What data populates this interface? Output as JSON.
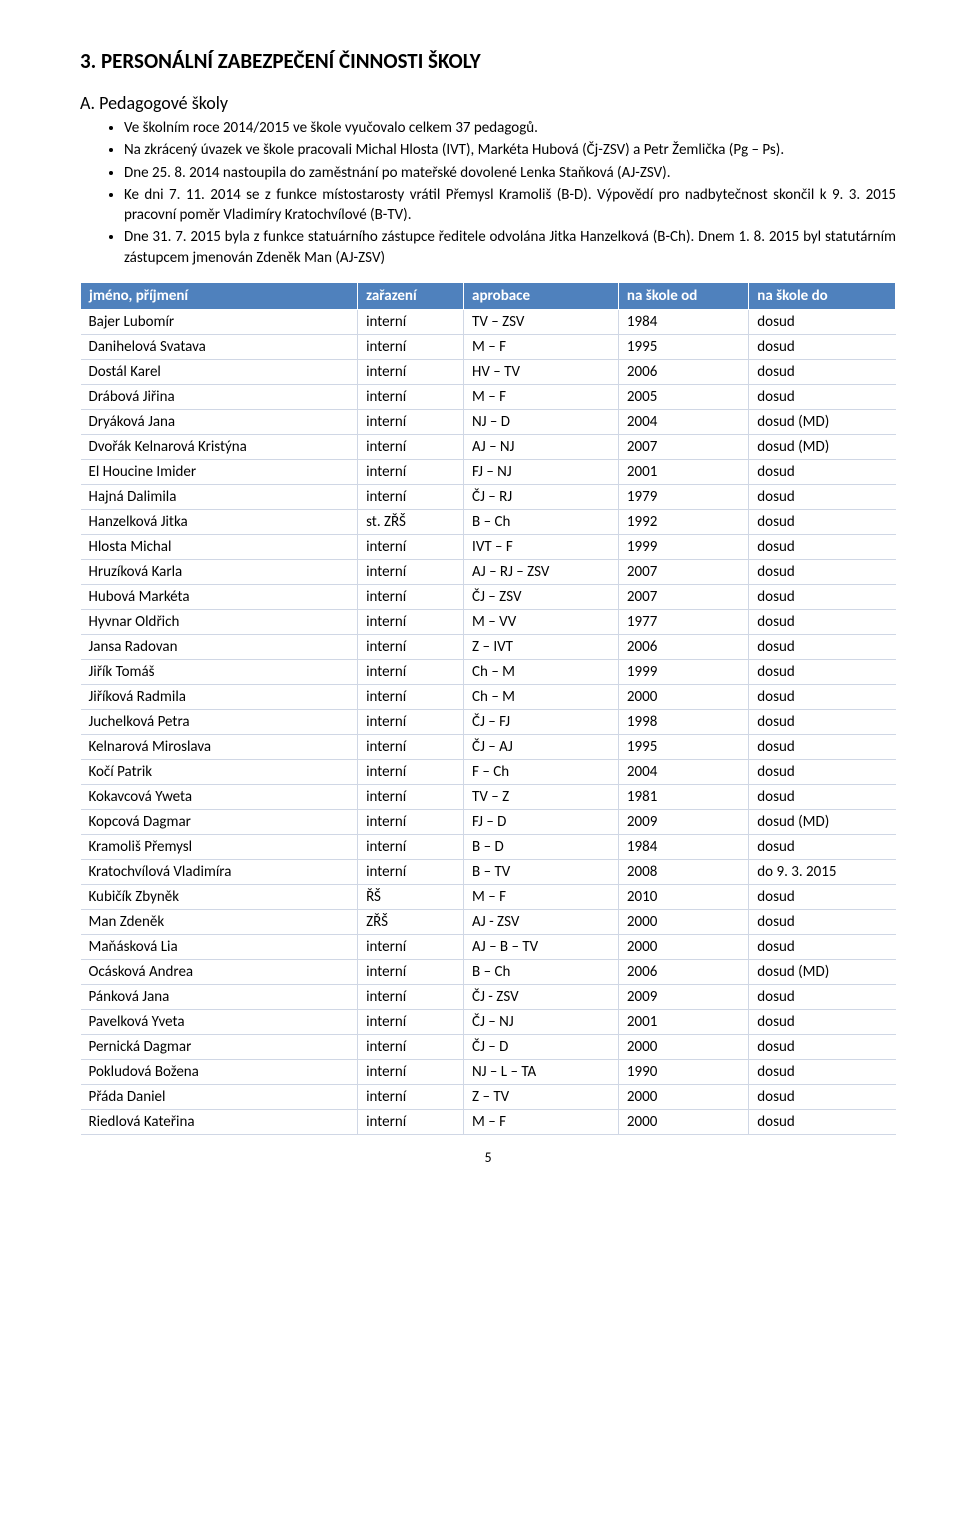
{
  "heading": "3.  PERSONÁLNÍ ZABEZPEČENÍ ČINNOSTI ŠKOLY",
  "subsection": "A. Pedagogové školy",
  "bullets": [
    "Ve školním roce 2014/2015 ve škole vyučovalo celkem 37 pedagogů.",
    "Na zkrácený úvazek ve škole pracovali Michal Hlosta (IVT), Markéta Hubová (Čj-ZSV) a Petr Žemlička (Pg – Ps).",
    "Dne 25. 8. 2014 nastoupila do zaměstnání po mateřské dovolené Lenka Staňková (AJ-ZSV).",
    "Ke dni 7. 11. 2014 se z funkce místostarosty vrátil Přemysl Kramoliš (B-D). Výpovědí pro nadbytečnost skončil k 9. 3. 2015 pracovní poměr Vladimíry Kratochvílové (B-TV).",
    "Dne 31. 7. 2015 byla z funkce statuárního zástupce ředitele odvolána Jitka Hanzelková (B-Ch). Dnem 1. 8. 2015 byl statutárním zástupcem jmenován Zdeněk Man (AJ-ZSV)"
  ],
  "table": {
    "headers": [
      "jméno, příjmení",
      "zařazení",
      "aprobace",
      "na škole od",
      "na škole do"
    ],
    "rows": [
      [
        "Bajer Lubomír",
        "interní",
        "TV – ZSV",
        "1984",
        "dosud"
      ],
      [
        "Danihelová Svatava",
        "interní",
        "M – F",
        "1995",
        "dosud"
      ],
      [
        "Dostál Karel",
        "interní",
        "HV – TV",
        "2006",
        "dosud"
      ],
      [
        "Drábová Jiřina",
        "interní",
        "M – F",
        "2005",
        "dosud"
      ],
      [
        "Dryáková Jana",
        "interní",
        "NJ – D",
        "2004",
        "dosud (MD)"
      ],
      [
        "Dvořák Kelnarová Kristýna",
        "interní",
        "AJ – NJ",
        "2007",
        "dosud (MD)"
      ],
      [
        "El Houcine Imider",
        "interní",
        "FJ – NJ",
        "2001",
        "dosud"
      ],
      [
        "Hajná Dalimila",
        "interní",
        "ČJ – RJ",
        "1979",
        "dosud"
      ],
      [
        "Hanzelková Jitka",
        "st. ZŘŠ",
        "B – Ch",
        "1992",
        "dosud"
      ],
      [
        "Hlosta Michal",
        "interní",
        "IVT – F",
        "1999",
        "dosud"
      ],
      [
        "Hruzíková Karla",
        "interní",
        "AJ – RJ – ZSV",
        "2007",
        "dosud"
      ],
      [
        "Hubová Markéta",
        "interní",
        "ČJ – ZSV",
        "2007",
        "dosud"
      ],
      [
        "Hyvnar Oldřich",
        "interní",
        "M – VV",
        "1977",
        "dosud"
      ],
      [
        "Jansa Radovan",
        "interní",
        "Z – IVT",
        "2006",
        "dosud"
      ],
      [
        "Jiřík Tomáš",
        "interní",
        "Ch – M",
        "1999",
        "dosud"
      ],
      [
        "Jiříková Radmila",
        "interní",
        "Ch – M",
        "2000",
        "dosud"
      ],
      [
        "Juchelková Petra",
        "interní",
        "ČJ – FJ",
        "1998",
        "dosud"
      ],
      [
        "Kelnarová Miroslava",
        "interní",
        "ČJ – AJ",
        "1995",
        "dosud"
      ],
      [
        "Kočí Patrik",
        "interní",
        "F – Ch",
        "2004",
        "dosud"
      ],
      [
        "Kokavcová Yweta",
        "interní",
        "TV – Z",
        "1981",
        "dosud"
      ],
      [
        "Kopcová Dagmar",
        "interní",
        "FJ – D",
        "2009",
        "dosud (MD)"
      ],
      [
        "Kramoliš Přemysl",
        "interní",
        "B – D",
        "1984",
        "dosud"
      ],
      [
        "Kratochvílová Vladimíra",
        "interní",
        "B – TV",
        "2008",
        "do 9. 3. 2015"
      ],
      [
        "Kubičík Zbyněk",
        "ŘŠ",
        "M – F",
        "2010",
        "dosud"
      ],
      [
        "Man Zdeněk",
        "ZŘŠ",
        "AJ - ZSV",
        "2000",
        "dosud"
      ],
      [
        "Maňásková Lia",
        "interní",
        "AJ – B – TV",
        "2000",
        "dosud"
      ],
      [
        "Ocásková Andrea",
        "interní",
        "B – Ch",
        "2006",
        "dosud (MD)"
      ],
      [
        "Pánková Jana",
        "interní",
        "ČJ - ZSV",
        "2009",
        "dosud"
      ],
      [
        "Pavelková Yveta",
        "interní",
        "ČJ – NJ",
        "2001",
        "dosud"
      ],
      [
        "Pernická Dagmar",
        "interní",
        "ČJ – D",
        "2000",
        "dosud"
      ],
      [
        "Pokludová Božena",
        "interní",
        "NJ – L – TA",
        "1990",
        "dosud"
      ],
      [
        "Přáda Daniel",
        "interní",
        "Z – TV",
        "2000",
        "dosud"
      ],
      [
        "Riedlová Kateřina",
        "interní",
        "M – F",
        "2000",
        "dosud"
      ]
    ]
  },
  "page_number": "5"
}
